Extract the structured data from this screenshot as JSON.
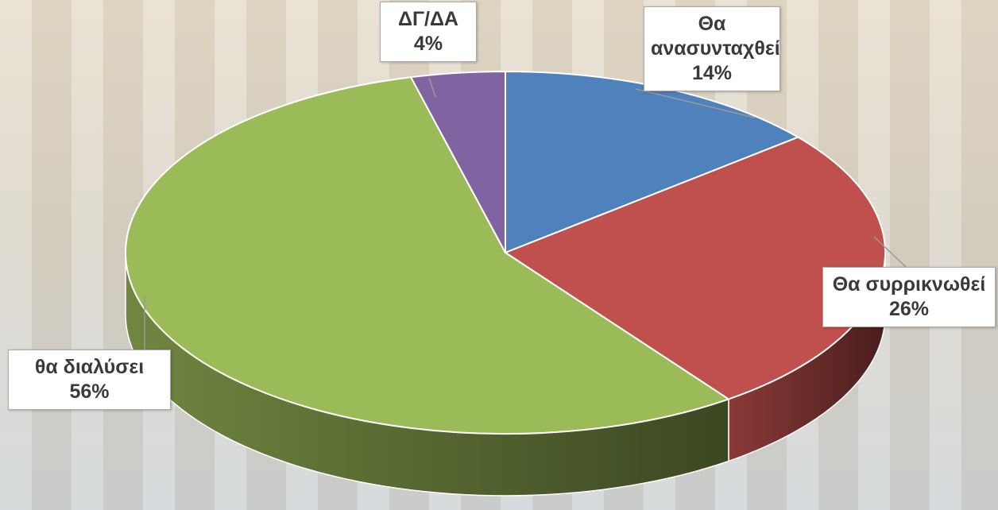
{
  "chart_data": {
    "type": "pie",
    "categories": [
      "Θα ανασυνταχθεί",
      "Θα συρρικνωθεί",
      "θα διαλύσει",
      "ΔΓ/ΔΑ"
    ],
    "values": [
      14,
      26,
      56,
      4
    ],
    "value_labels": [
      "14%",
      "26%",
      "56%",
      "4%"
    ],
    "colors": [
      "#4f81bd",
      "#c0504d",
      "#9bbb59",
      "#8064a2"
    ]
  }
}
